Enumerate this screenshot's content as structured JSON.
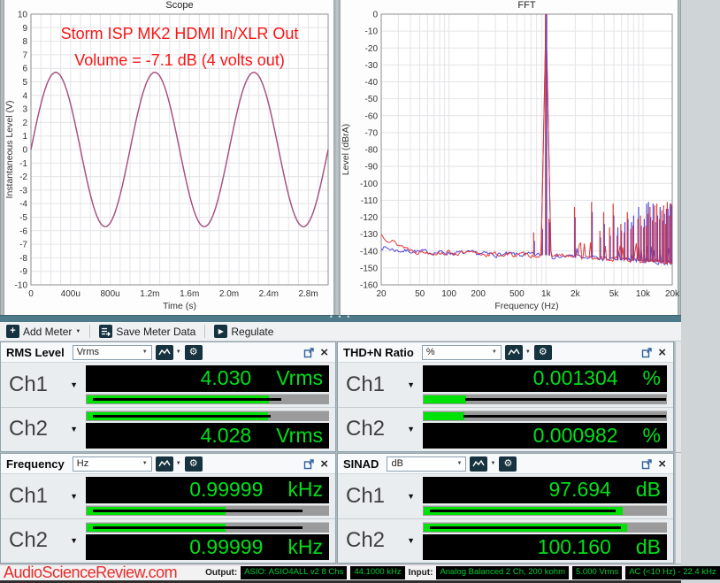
{
  "colors": {
    "value_green": "#00df1a",
    "bar_green": "#00e206",
    "bar_track": "#9b9b9b",
    "badge_green": "#00cd33",
    "icon_teal": "#17333f",
    "watermark_red": "#e72c2c",
    "annotation_red": "#fa1414",
    "trace_red": "#e03232",
    "trace_blue": "#4a3fd6",
    "splitter_teal": "#4e7a8a"
  },
  "icons": {
    "plus": "+",
    "play": "▶",
    "gear": "⚙",
    "close": "×",
    "caret": "▼",
    "dots": "• • •"
  },
  "toolbar": {
    "add_meter": "Add Meter",
    "save_meter_data": "Save Meter Data",
    "regulate": "Regulate"
  },
  "chart_data": [
    {
      "type": "line",
      "id": "scope",
      "title": "Scope",
      "annotation": [
        "Storm ISP MK2 HDMI In/XLR Out",
        "Volume = -7.1 dB (4 volts out)"
      ],
      "xlabel": "Time (s)",
      "ylabel": "Instantaneous Level (V)",
      "xlim_ms": [
        0,
        3.0
      ],
      "ylim": [
        -10,
        10
      ],
      "y_tick_step": 1,
      "grid_ms": 0.1,
      "grid": true,
      "x_ticks": [
        {
          "ms": 0,
          "label": "0"
        },
        {
          "ms": 0.4,
          "label": "400u"
        },
        {
          "ms": 0.8,
          "label": "800u"
        },
        {
          "ms": 1.2,
          "label": "1.2m"
        },
        {
          "ms": 1.6,
          "label": "1.6m"
        },
        {
          "ms": 2.0,
          "label": "2.0m"
        },
        {
          "ms": 2.4,
          "label": "2.4m"
        },
        {
          "ms": 2.8,
          "label": "2.8m"
        }
      ],
      "series": [
        {
          "name": "Ch1",
          "color": "#c64a5a",
          "waveform": "sine",
          "amplitude_v": 5.7,
          "frequency_hz": 1000,
          "phase_deg": 0
        },
        {
          "name": "Ch2",
          "color": "#5a5ad0",
          "waveform": "sine",
          "amplitude_v": 5.7,
          "frequency_hz": 1000,
          "phase_deg": 0
        }
      ]
    },
    {
      "type": "line",
      "id": "fft",
      "title": "FFT",
      "xlabel": "Frequency (Hz)",
      "ylabel": "Level (dBrA)",
      "xlim_hz": [
        20,
        20000
      ],
      "ylim": [
        -160,
        0
      ],
      "y_tick_step": 10,
      "grid": true,
      "x_scale": "log",
      "x_ticks": [
        {
          "hz": 20,
          "label": "20"
        },
        {
          "hz": 50,
          "label": "50"
        },
        {
          "hz": 100,
          "label": "100"
        },
        {
          "hz": 200,
          "label": "200"
        },
        {
          "hz": 500,
          "label": "500"
        },
        {
          "hz": 1000,
          "label": "1k"
        },
        {
          "hz": 2000,
          "label": "2k"
        },
        {
          "hz": 5000,
          "label": "5k"
        },
        {
          "hz": 10000,
          "label": "10k"
        },
        {
          "hz": 20000,
          "label": "20k"
        }
      ],
      "traces": [
        {
          "name": "Ch1",
          "color": "#e03232"
        },
        {
          "name": "Ch2",
          "color": "#4a3fd6"
        }
      ],
      "fundamental_hz": 1000,
      "fundamental_db": 0,
      "noise_floor_db": [
        [
          20,
          -134
        ],
        [
          30,
          -138
        ],
        [
          50,
          -140.5
        ],
        [
          100,
          -141
        ],
        [
          300,
          -142
        ],
        [
          1000,
          -142.5
        ],
        [
          3000,
          -144
        ],
        [
          10000,
          -146
        ],
        [
          20000,
          -147
        ]
      ],
      "harmonics": [
        {
          "hz": 760,
          "ch1_db": -129,
          "ch2_db": -134
        },
        {
          "hz": 920,
          "ch1_db": -125,
          "ch2_db": -127
        },
        {
          "hz": 1090,
          "ch1_db": -121,
          "ch2_db": -123
        },
        {
          "hz": 2000,
          "ch1_db": -114,
          "ch2_db": -120
        },
        {
          "hz": 3000,
          "ch1_db": -111,
          "ch2_db": -117
        },
        {
          "hz": 3650,
          "ch1_db": -128,
          "ch2_db": -132
        },
        {
          "hz": 4000,
          "ch1_db": -117,
          "ch2_db": -124
        },
        {
          "hz": 4600,
          "ch1_db": -126,
          "ch2_db": -131
        },
        {
          "hz": 5000,
          "ch1_db": -112,
          "ch2_db": -119
        },
        {
          "hz": 5500,
          "ch1_db": -131,
          "ch2_db": -126
        },
        {
          "hz": 6000,
          "ch1_db": -124,
          "ch2_db": -128
        },
        {
          "hz": 6500,
          "ch1_db": -129,
          "ch2_db": -123
        },
        {
          "hz": 7000,
          "ch1_db": -117,
          "ch2_db": -121
        },
        {
          "hz": 7600,
          "ch1_db": -127,
          "ch2_db": -123
        },
        {
          "hz": 8000,
          "ch1_db": -125,
          "ch2_db": -119
        },
        {
          "hz": 9000,
          "ch1_db": -121,
          "ch2_db": -114
        },
        {
          "hz": 9600,
          "ch1_db": -119,
          "ch2_db": -125
        },
        {
          "hz": 10300,
          "ch1_db": -126,
          "ch2_db": -121
        },
        {
          "hz": 10900,
          "ch1_db": -125,
          "ch2_db": -112
        },
        {
          "hz": 11400,
          "ch1_db": -118,
          "ch2_db": -111
        },
        {
          "hz": 12000,
          "ch1_db": -114,
          "ch2_db": -120
        },
        {
          "hz": 12700,
          "ch1_db": -122,
          "ch2_db": -112
        },
        {
          "hz": 13400,
          "ch1_db": -113,
          "ch2_db": -123
        },
        {
          "hz": 14100,
          "ch1_db": -112,
          "ch2_db": -119
        },
        {
          "hz": 15000,
          "ch1_db": -121,
          "ch2_db": -114
        },
        {
          "hz": 15900,
          "ch1_db": -116,
          "ch2_db": -122
        },
        {
          "hz": 16600,
          "ch1_db": -113,
          "ch2_db": -118
        },
        {
          "hz": 17400,
          "ch1_db": -124,
          "ch2_db": -115
        },
        {
          "hz": 18100,
          "ch1_db": -111,
          "ch2_db": -115
        },
        {
          "hz": 19000,
          "ch1_db": -119,
          "ch2_db": -112
        },
        {
          "hz": 19800,
          "ch1_db": -112,
          "ch2_db": -113
        }
      ]
    }
  ],
  "meters": [
    {
      "title": "RMS Level",
      "unit_selector": "Vrms",
      "channels": [
        {
          "label": "Ch1",
          "value": "4.030",
          "unit": "Vrms",
          "bar_pct": 75,
          "stripe_from": 3,
          "stripe_to": 80.5
        },
        {
          "label": "Ch2",
          "value": "4.028",
          "unit": "Vrms",
          "bar_pct": 74.5,
          "stripe_from": 3,
          "stripe_to": 76
        }
      ]
    },
    {
      "title": "THD+N Ratio",
      "unit_selector": "%",
      "channels": [
        {
          "label": "Ch1",
          "value": "0.001304",
          "unit": "%",
          "bar_pct": 17.5,
          "stripe_from": 17.5,
          "stripe_to": 99.5
        },
        {
          "label": "Ch2",
          "value": "0.000982",
          "unit": "%",
          "bar_pct": 16.5,
          "stripe_from": 16.5,
          "stripe_to": 99.5
        }
      ]
    },
    {
      "title": "Frequency",
      "unit_selector": "Hz",
      "channels": [
        {
          "label": "Ch1",
          "value": "0.99999",
          "unit": "kHz",
          "bar_pct": 57,
          "stripe_from": 3,
          "stripe_to": 89
        },
        {
          "label": "Ch2",
          "value": "0.99999",
          "unit": "kHz",
          "bar_pct": 57,
          "stripe_from": 3,
          "stripe_to": 89
        }
      ]
    },
    {
      "title": "SINAD",
      "unit_selector": "dB",
      "channels": [
        {
          "label": "Ch1",
          "value": "97.694",
          "unit": "dB",
          "bar_pct": 81.5,
          "stripe_from": 3,
          "stripe_to": 79
        },
        {
          "label": "Ch2",
          "value": "100.160",
          "unit": "dB",
          "bar_pct": 83.5,
          "stripe_from": 3,
          "stripe_to": 81
        }
      ]
    }
  ],
  "statusbar": {
    "watermark": "AudioScienceReview.com",
    "output_label": "Output:",
    "output_device": "ASIO: ASIO4ALL v2 8 Chs",
    "sample_rate": "44.1000 kHz",
    "input_label": "Input:",
    "input_config": "Analog Balanced 2 Ch, 200 kohm",
    "input_range": "5.000 Vrms",
    "input_filter": "AC (<10 Hz) - 22.4 kHz"
  }
}
